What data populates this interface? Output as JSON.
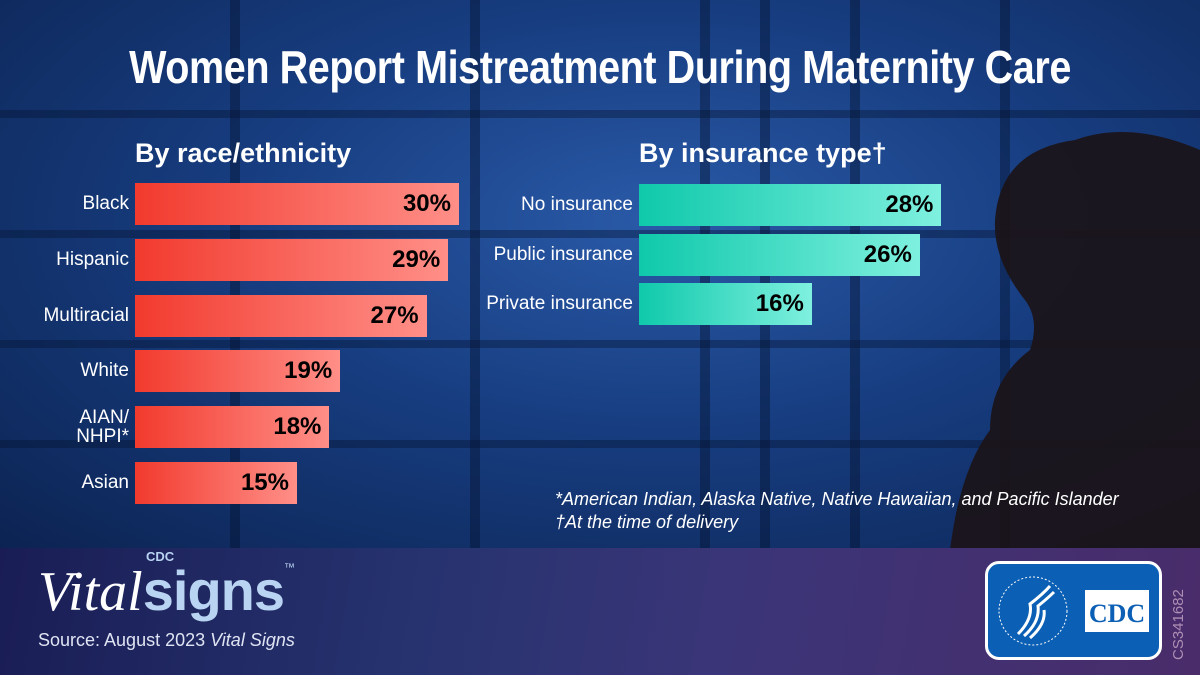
{
  "title": "Women Report Mistreatment During Maternity Care",
  "colors": {
    "race_bar": "#f23a2e",
    "insurance_bar": "#0fc9ab",
    "background": "#173d80"
  },
  "chart_data": [
    {
      "type": "bar",
      "orientation": "horizontal",
      "title": "By race/ethnicity",
      "categories": [
        "Black",
        "Hispanic",
        "Multiracial",
        "White",
        "AIAN/ NHPI*",
        "Asian"
      ],
      "values": [
        30,
        29,
        27,
        19,
        18,
        15
      ],
      "labels": [
        "30%",
        "29%",
        "27%",
        "19%",
        "18%",
        "15%"
      ],
      "unit": "%"
    },
    {
      "type": "bar",
      "orientation": "horizontal",
      "title": "By insurance type†",
      "categories": [
        "No insurance",
        "Public insurance",
        "Private insurance"
      ],
      "values": [
        28,
        26,
        16
      ],
      "labels": [
        "28%",
        "26%",
        "16%"
      ],
      "unit": "%"
    }
  ],
  "notes": [
    "*American Indian, Alaska Native, Native Hawaiian, and Pacific Islander",
    "†At the time of delivery"
  ],
  "footer": {
    "logo_cdc": "CDC",
    "logo_vital": "Vital",
    "logo_signs": "signs",
    "logo_tm": "™",
    "source_prefix": "Source: August 2023 ",
    "source_italic": "Vital Signs",
    "hhs_logo": "HHS / CDC",
    "code": "CS341682"
  }
}
